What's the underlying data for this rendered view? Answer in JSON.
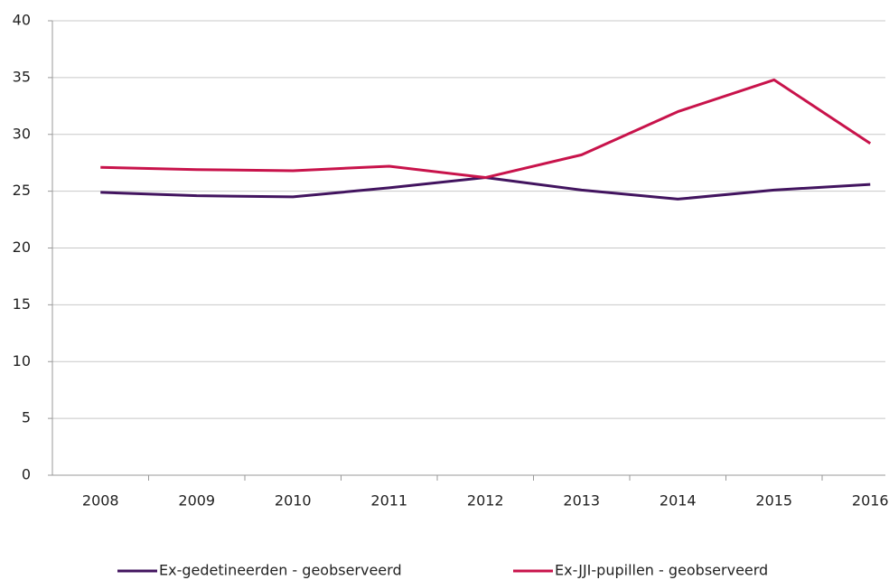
{
  "chart_data": {
    "type": "line",
    "categories": [
      "2008",
      "2009",
      "2010",
      "2011",
      "2012",
      "2013",
      "2014",
      "2015",
      "2016"
    ],
    "series": [
      {
        "name": "Ex-gedetineerden - geobserveerd",
        "color": "#42145f",
        "values": [
          24.9,
          24.6,
          24.5,
          25.3,
          26.2,
          25.1,
          24.3,
          25.1,
          25.6
        ]
      },
      {
        "name": "Ex-JJI-pupillen - geobserveerd",
        "color": "#c8134b",
        "values": [
          27.1,
          26.9,
          26.8,
          27.2,
          26.2,
          28.2,
          32.0,
          34.8,
          29.2
        ]
      }
    ],
    "ylim": [
      0,
      40
    ],
    "yticks": [
      0,
      5,
      10,
      15,
      20,
      25,
      30,
      35,
      40
    ],
    "grid": true,
    "legend": "bottom"
  }
}
